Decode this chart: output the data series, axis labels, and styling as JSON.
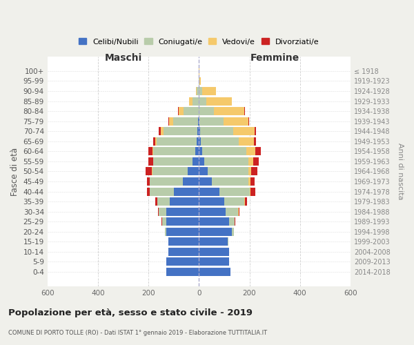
{
  "age_groups": [
    "0-4",
    "5-9",
    "10-14",
    "15-19",
    "20-24",
    "25-29",
    "30-34",
    "35-39",
    "40-44",
    "45-49",
    "50-54",
    "55-59",
    "60-64",
    "65-69",
    "70-74",
    "75-79",
    "80-84",
    "85-89",
    "90-94",
    "95-99",
    "100+"
  ],
  "birth_years": [
    "2014-2018",
    "2009-2013",
    "2004-2008",
    "1999-2003",
    "1994-1998",
    "1989-1993",
    "1984-1988",
    "1979-1983",
    "1974-1978",
    "1969-1973",
    "1964-1968",
    "1959-1963",
    "1954-1958",
    "1949-1953",
    "1944-1948",
    "1939-1943",
    "1934-1938",
    "1929-1933",
    "1924-1928",
    "1919-1923",
    "≤ 1918"
  ],
  "male": {
    "celibe": [
      130,
      130,
      120,
      120,
      130,
      130,
      130,
      115,
      100,
      65,
      45,
      25,
      15,
      8,
      5,
      3,
      0,
      0,
      0,
      0,
      0
    ],
    "coniugato": [
      0,
      0,
      0,
      2,
      5,
      15,
      30,
      50,
      95,
      130,
      140,
      155,
      165,
      160,
      135,
      100,
      60,
      25,
      8,
      2,
      1
    ],
    "vedovo": [
      0,
      0,
      0,
      0,
      0,
      0,
      0,
      1,
      1,
      1,
      2,
      2,
      3,
      5,
      10,
      15,
      20,
      15,
      5,
      0,
      0
    ],
    "divorziato": [
      0,
      0,
      0,
      0,
      0,
      2,
      3,
      8,
      10,
      10,
      25,
      18,
      18,
      8,
      8,
      2,
      2,
      0,
      0,
      0,
      0
    ]
  },
  "female": {
    "nubile": [
      125,
      120,
      120,
      115,
      130,
      120,
      105,
      100,
      80,
      50,
      35,
      20,
      12,
      8,
      5,
      2,
      0,
      0,
      0,
      0,
      0
    ],
    "coniugata": [
      0,
      0,
      0,
      2,
      8,
      20,
      50,
      80,
      120,
      145,
      160,
      175,
      175,
      150,
      130,
      95,
      60,
      30,
      12,
      2,
      0
    ],
    "vedova": [
      0,
      0,
      0,
      0,
      0,
      1,
      2,
      3,
      5,
      8,
      12,
      20,
      35,
      60,
      85,
      100,
      120,
      100,
      55,
      5,
      2
    ],
    "divorziata": [
      0,
      0,
      0,
      0,
      0,
      2,
      3,
      8,
      18,
      18,
      25,
      22,
      22,
      8,
      5,
      2,
      2,
      0,
      0,
      0,
      0
    ]
  },
  "colors": {
    "celibe": "#4472c4",
    "coniugato": "#b8ccaa",
    "vedovo": "#f5c96b",
    "divorziato": "#cc2222"
  },
  "legend_labels": [
    "Celibi/Nubili",
    "Coniugati/e",
    "Vedovi/e",
    "Divorziati/e"
  ],
  "xlim": 600,
  "title": "Popolazione per età, sesso e stato civile - 2019",
  "subtitle": "COMUNE DI PORTO TOLLE (RO) - Dati ISTAT 1° gennaio 2019 - Elaborazione TUTTITALIA.IT",
  "ylabel": "Fasce di età",
  "ylabel_right": "Anni di nascita",
  "maschi_label": "Maschi",
  "femmine_label": "Femmine",
  "bg_color": "#f0f0eb",
  "plot_bg": "#ffffff"
}
